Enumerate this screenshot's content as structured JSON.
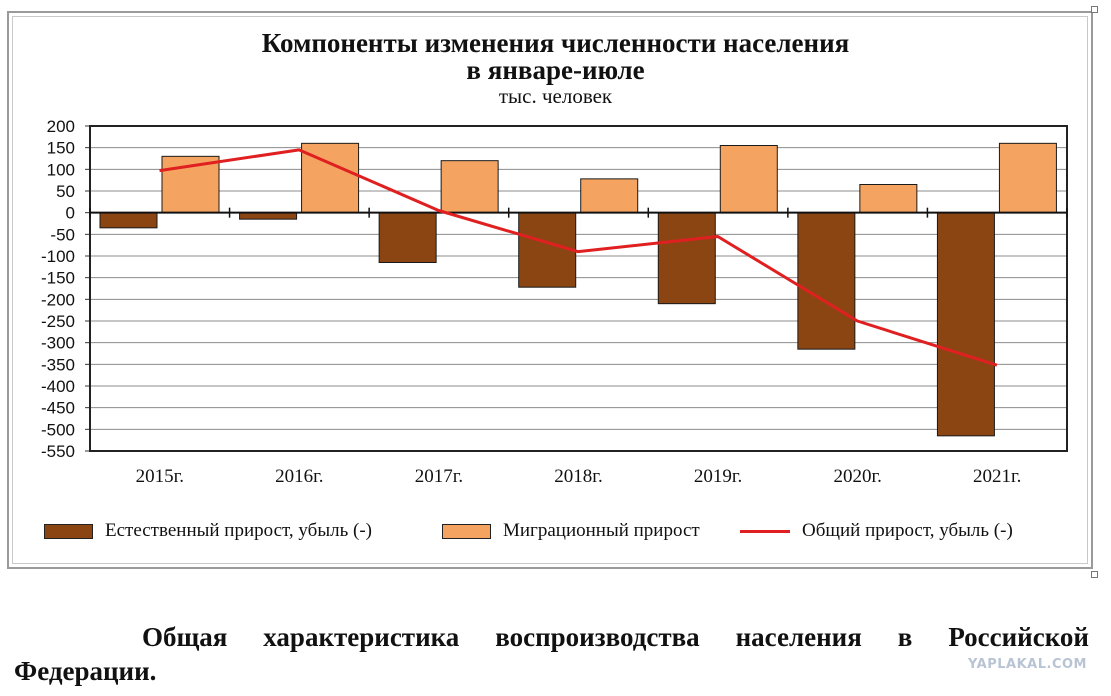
{
  "chart_data": {
    "type": "bar",
    "title_line1": "Компоненты изменения численности населения",
    "title_line2": "в январе-июле",
    "subtitle": "тыс. человек",
    "categories": [
      "2015г.",
      "2016г.",
      "2017г.",
      "2018г.",
      "2019г.",
      "2020г.",
      "2021г."
    ],
    "series": [
      {
        "name": "Естественный прирост, убыль (-)",
        "kind": "bar",
        "color": "#8b4513",
        "values": [
          -35,
          -15,
          -115,
          -172,
          -210,
          -315,
          -515
        ]
      },
      {
        "name": "Миграционный прирост",
        "kind": "bar",
        "color": "#f4a460",
        "values": [
          130,
          160,
          120,
          78,
          155,
          65,
          160
        ]
      },
      {
        "name": "Общий прирост, убыль (-)",
        "kind": "line",
        "color": "#e02020",
        "values": [
          97,
          145,
          5,
          -90,
          -55,
          -250,
          -352
        ]
      }
    ],
    "yticks": [
      "200",
      "150",
      "100",
      "50",
      "0",
      "-50",
      "-100",
      "-150",
      "-200",
      "-250",
      "-300",
      "-350",
      "-400",
      "-450",
      "-500",
      "-550"
    ],
    "ylim": [
      -550,
      200
    ],
    "grid": true,
    "legend_position": "bottom"
  },
  "caption": {
    "line1_words": [
      "Общая",
      "характеристика",
      "воспроизводства",
      "населения",
      "в",
      "Российской"
    ],
    "line2": "Федерации."
  },
  "watermark": "YAPLAKAL.COM"
}
